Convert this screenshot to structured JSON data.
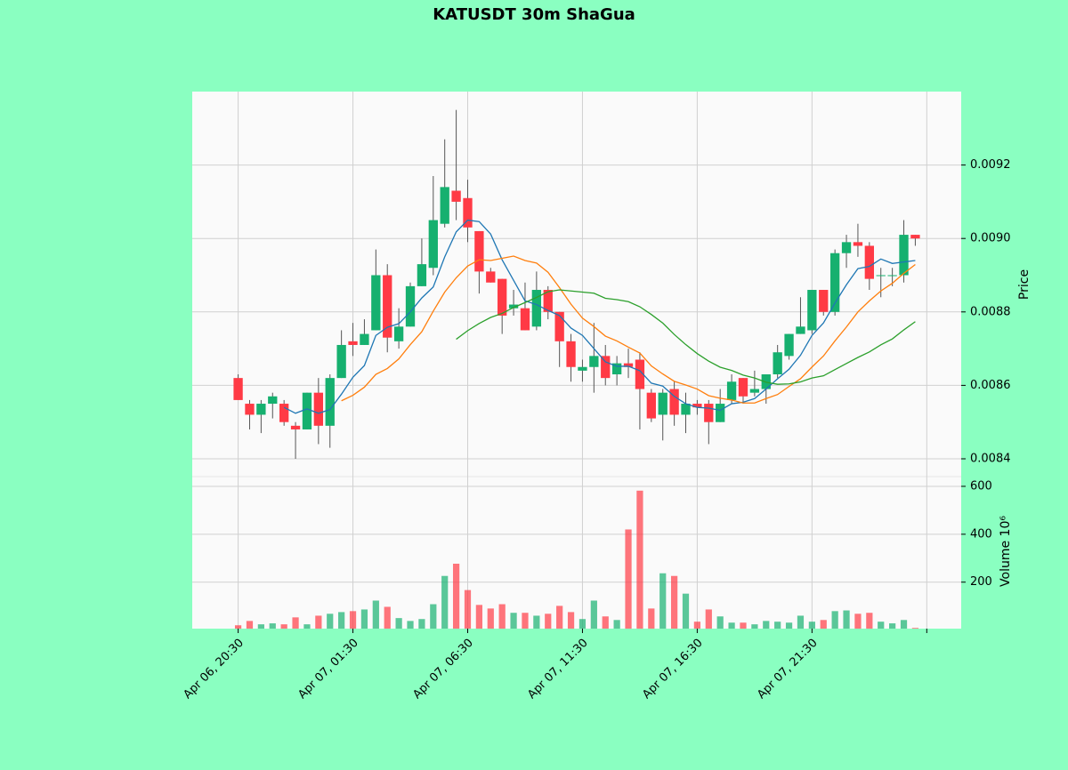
{
  "chart_data": {
    "type": "candlestick",
    "title": "KATUSDT 30m ShaGua",
    "ylabel": "Price",
    "y2label": "Volume  10⁶",
    "categories": [
      "Apr 06, 20:30",
      null,
      null,
      null,
      null,
      null,
      null,
      null,
      null,
      null,
      "Apr 07, 01:30",
      null,
      null,
      null,
      null,
      null,
      null,
      null,
      null,
      null,
      "Apr 07, 06:30",
      null,
      null,
      null,
      null,
      null,
      null,
      null,
      null,
      null,
      "Apr 07, 11:30",
      null,
      null,
      null,
      null,
      null,
      null,
      null,
      null,
      null,
      "Apr 07, 16:30",
      null,
      null,
      null,
      null,
      null,
      null,
      null,
      null,
      null,
      "Apr 07, 21:30",
      null,
      null,
      null,
      null,
      null,
      null,
      null,
      null,
      null
    ],
    "open": [
      0.00862,
      0.00855,
      0.00852,
      0.00855,
      0.00855,
      0.00849,
      0.00848,
      0.00858,
      0.00849,
      0.00862,
      0.00872,
      0.00871,
      0.00875,
      0.0089,
      0.00872,
      0.00876,
      0.00887,
      0.00892,
      0.00904,
      0.00913,
      0.00911,
      0.00902,
      0.00891,
      0.00889,
      0.00881,
      0.00881,
      0.00876,
      0.00886,
      0.0088,
      0.00872,
      0.00864,
      0.00865,
      0.00868,
      0.00863,
      0.00866,
      0.00867,
      0.00858,
      0.00852,
      0.00859,
      0.00852,
      0.00855,
      0.00855,
      0.0085,
      0.00856,
      0.00862,
      0.00858,
      0.00859,
      0.00863,
      0.00868,
      0.00874,
      0.00875,
      0.00886,
      0.0088,
      0.00896,
      0.00899,
      0.00898,
      0.0089,
      0.0089,
      0.0089,
      0.00901
    ],
    "high": [
      0.00863,
      0.00856,
      0.00856,
      0.00858,
      0.00856,
      0.0085,
      0.00858,
      0.00862,
      0.00863,
      0.00875,
      0.00877,
      0.00878,
      0.00897,
      0.00893,
      0.00881,
      0.00888,
      0.009,
      0.00917,
      0.00927,
      0.00935,
      0.00916,
      0.00902,
      0.00892,
      0.00889,
      0.00886,
      0.00888,
      0.00891,
      0.00887,
      0.0088,
      0.00874,
      0.00867,
      0.00877,
      0.00871,
      0.00868,
      0.0087,
      0.00869,
      0.00859,
      0.00859,
      0.00861,
      0.00858,
      0.00856,
      0.00856,
      0.00859,
      0.00863,
      0.00862,
      0.00864,
      0.00863,
      0.00871,
      0.00874,
      0.00884,
      0.00886,
      0.00886,
      0.00897,
      0.00901,
      0.00904,
      0.00899,
      0.00892,
      0.00892,
      0.00905,
      0.00901
    ],
    "low": [
      0.00856,
      0.00848,
      0.00847,
      0.00851,
      0.00849,
      0.0084,
      0.00848,
      0.00844,
      0.00843,
      0.00862,
      0.00868,
      0.00871,
      0.00875,
      0.00869,
      0.0087,
      0.00876,
      0.00887,
      0.0089,
      0.00903,
      0.00905,
      0.00899,
      0.00885,
      0.00888,
      0.00874,
      0.00879,
      0.00875,
      0.00875,
      0.00878,
      0.00865,
      0.00861,
      0.00861,
      0.00858,
      0.0086,
      0.0086,
      0.00862,
      0.00848,
      0.0085,
      0.00845,
      0.00849,
      0.00847,
      0.00852,
      0.00844,
      0.0085,
      0.00855,
      0.00855,
      0.00857,
      0.00855,
      0.00862,
      0.00867,
      0.00874,
      0.00874,
      0.00879,
      0.00879,
      0.00892,
      0.00895,
      0.00886,
      0.00884,
      0.00887,
      0.00888,
      0.00898
    ],
    "close": [
      0.00856,
      0.00852,
      0.00855,
      0.00857,
      0.0085,
      0.00848,
      0.00858,
      0.00849,
      0.00862,
      0.00871,
      0.00871,
      0.00874,
      0.0089,
      0.00873,
      0.00876,
      0.00887,
      0.00893,
      0.00905,
      0.00914,
      0.0091,
      0.00903,
      0.00891,
      0.00888,
      0.00879,
      0.00882,
      0.00875,
      0.00886,
      0.0088,
      0.00872,
      0.00865,
      0.00865,
      0.00868,
      0.00862,
      0.00866,
      0.00865,
      0.00859,
      0.00851,
      0.00858,
      0.00852,
      0.00855,
      0.00854,
      0.0085,
      0.00855,
      0.00861,
      0.00857,
      0.00859,
      0.00863,
      0.00869,
      0.00874,
      0.00876,
      0.00886,
      0.0088,
      0.00896,
      0.00899,
      0.00898,
      0.00889,
      0.0089,
      0.0089,
      0.00901,
      0.009
    ],
    "volume": [
      20,
      38,
      24,
      28,
      24,
      53,
      24,
      60,
      68,
      75,
      79,
      86,
      123,
      97,
      50,
      38,
      46,
      108,
      226,
      277,
      167,
      105,
      90,
      108,
      72,
      72,
      60,
      68,
      101,
      75,
      46,
      123,
      57,
      42,
      420,
      582,
      90,
      237,
      226,
      152,
      35,
      86,
      57,
      31,
      31,
      24,
      38,
      35,
      31,
      60,
      35,
      42,
      79,
      82,
      68,
      72,
      35,
      28,
      42,
      9
    ],
    "mav": [
      5,
      10,
      20
    ],
    "mav_colors": [
      "#1f77b4",
      "#ff7f0e",
      "#2ca02c"
    ],
    "up_color": "#16b06f",
    "down_color": "#ff3a45",
    "xlim": [
      -4,
      63
    ],
    "xticks": [
      0,
      10,
      20,
      30,
      40,
      50,
      60
    ],
    "ylim": [
      0.008354,
      0.0094
    ],
    "yticks": [
      0.0084,
      0.0086,
      0.0088,
      {
        "value": 0.009,
        "label": "0.0090"
      },
      0.0092
    ],
    "y2lim": [
      6,
      637
    ],
    "y2ticks": [
      200,
      400,
      600
    ],
    "grid": true
  }
}
